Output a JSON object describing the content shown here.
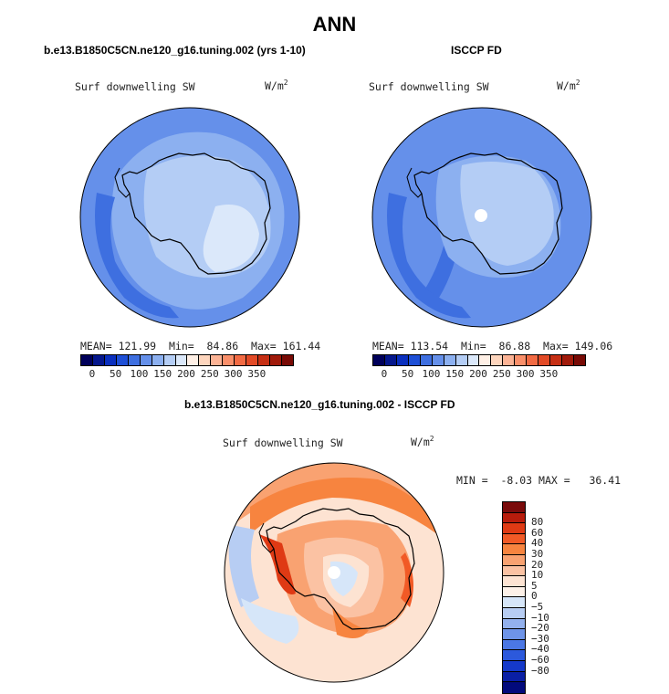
{
  "title": "ANN",
  "panels": {
    "model": {
      "title": "b.e13.B1850C5CN.ne120_g16.tuning.002 (yrs 1-10)",
      "variable": "Surf downwelling SW",
      "units": "W/m",
      "units_exp": "2",
      "mean_label": "MEAN=",
      "mean": "121.99",
      "min_label": "Min=",
      "min": "84.86",
      "max_label": "Max=",
      "max": "161.44"
    },
    "obs": {
      "title": "ISCCP FD",
      "variable": "Surf downwelling SW",
      "units": "W/m",
      "units_exp": "2",
      "mean_label": "MEAN=",
      "mean": "113.54",
      "min_label": "Min=",
      "min": "86.88",
      "max_label": "Max=",
      "max": "149.06"
    },
    "diff": {
      "title": "b.e13.B1850C5CN.ne120_g16.tuning.002 - ISCCP FD",
      "variable": "Surf downwelling SW",
      "units": "W/m",
      "units_exp": "2",
      "min_label": "MIN =",
      "min": "-8.03",
      "max_label": "MAX =",
      "max": "36.41"
    }
  },
  "colorbar_abs": {
    "colors": [
      "#00005a",
      "#05178c",
      "#0a2fbe",
      "#1e4fd6",
      "#3e6fe0",
      "#6590ea",
      "#8cb0f0",
      "#b4cdf5",
      "#dbe8fa",
      "#fff0e6",
      "#fdd5bd",
      "#fcb395",
      "#fa8f6a",
      "#f26a43",
      "#e24a26",
      "#c62f14",
      "#a01a0a",
      "#780a05"
    ],
    "ticks": [
      "0",
      "50",
      "100",
      "150",
      "200",
      "250",
      "300",
      "350"
    ],
    "tick_values": [
      0,
      50,
      100,
      150,
      200,
      250,
      300,
      350
    ]
  },
  "colorbar_diff": {
    "colors": [
      "#7a0b0b",
      "#b81c0c",
      "#df3a14",
      "#f15a26",
      "#f7843f",
      "#f9a271",
      "#fbc2a3",
      "#fde3d2",
      "#fdf1e8",
      "#d6e6f9",
      "#b7cdf3",
      "#93b1ee",
      "#6e94e8",
      "#4b77e4",
      "#2c59dc",
      "#1539c9",
      "#0a1fa5",
      "#020a7c"
    ],
    "ticks": [
      "80",
      "60",
      "40",
      "30",
      "20",
      "10",
      "5",
      "0",
      "−5",
      "−10",
      "−20",
      "−30",
      "−40",
      "−60",
      "−80"
    ]
  },
  "chart_data": [
    {
      "type": "map",
      "title": "b.e13.B1850C5CN.ne120_g16.tuning.002 (yrs 1-10)",
      "projection": "south polar stereographic",
      "variable": "Surf downwelling SW",
      "units": "W/m^2",
      "mean": 121.99,
      "min": 84.86,
      "max": 161.44,
      "levels": [
        0,
        25,
        50,
        75,
        100,
        125,
        150,
        175,
        200,
        225,
        250,
        275,
        300,
        325,
        350
      ]
    },
    {
      "type": "map",
      "title": "ISCCP FD",
      "projection": "south polar stereographic",
      "variable": "Surf downwelling SW",
      "units": "W/m^2",
      "mean": 113.54,
      "min": 86.88,
      "max": 149.06,
      "levels": [
        0,
        25,
        50,
        75,
        100,
        125,
        150,
        175,
        200,
        225,
        250,
        275,
        300,
        325,
        350
      ]
    },
    {
      "type": "map",
      "title": "b.e13.B1850C5CN.ne120_g16.tuning.002 - ISCCP FD",
      "projection": "south polar stereographic",
      "variable": "Surf downwelling SW",
      "units": "W/m^2",
      "min": -8.03,
      "max": 36.41,
      "levels": [
        -80,
        -60,
        -40,
        -30,
        -20,
        -10,
        -5,
        0,
        5,
        10,
        20,
        30,
        40,
        60,
        80
      ]
    }
  ]
}
